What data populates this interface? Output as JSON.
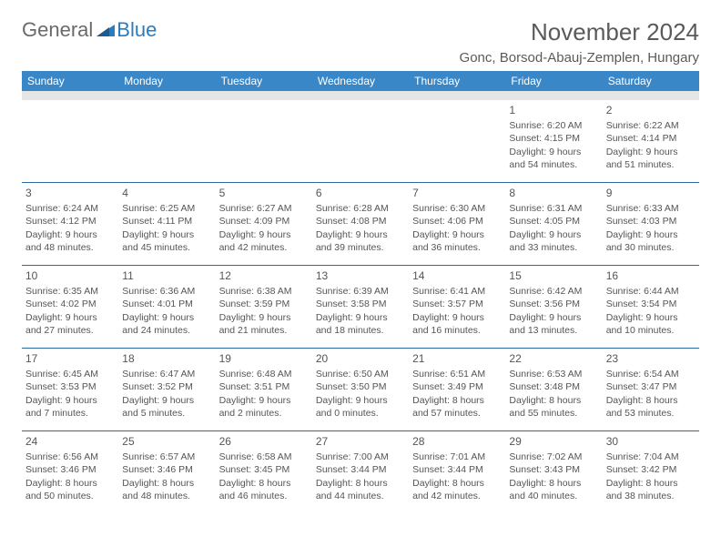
{
  "logo": {
    "part1": "General",
    "part2": "Blue"
  },
  "title": "November 2024",
  "location": "Gonc, Borsod-Abauj-Zemplen, Hungary",
  "header_color": "#3a87c8",
  "border_color": "#2b6aa3",
  "spacer_color": "#e5e5e5",
  "text_color": "#555555",
  "weekdays": [
    "Sunday",
    "Monday",
    "Tuesday",
    "Wednesday",
    "Thursday",
    "Friday",
    "Saturday"
  ],
  "weeks": [
    [
      {
        "n": "",
        "sr": "",
        "ss": "",
        "dl": ""
      },
      {
        "n": "",
        "sr": "",
        "ss": "",
        "dl": ""
      },
      {
        "n": "",
        "sr": "",
        "ss": "",
        "dl": ""
      },
      {
        "n": "",
        "sr": "",
        "ss": "",
        "dl": ""
      },
      {
        "n": "",
        "sr": "",
        "ss": "",
        "dl": ""
      },
      {
        "n": "1",
        "sr": "Sunrise: 6:20 AM",
        "ss": "Sunset: 4:15 PM",
        "dl": "Daylight: 9 hours and 54 minutes."
      },
      {
        "n": "2",
        "sr": "Sunrise: 6:22 AM",
        "ss": "Sunset: 4:14 PM",
        "dl": "Daylight: 9 hours and 51 minutes."
      }
    ],
    [
      {
        "n": "3",
        "sr": "Sunrise: 6:24 AM",
        "ss": "Sunset: 4:12 PM",
        "dl": "Daylight: 9 hours and 48 minutes."
      },
      {
        "n": "4",
        "sr": "Sunrise: 6:25 AM",
        "ss": "Sunset: 4:11 PM",
        "dl": "Daylight: 9 hours and 45 minutes."
      },
      {
        "n": "5",
        "sr": "Sunrise: 6:27 AM",
        "ss": "Sunset: 4:09 PM",
        "dl": "Daylight: 9 hours and 42 minutes."
      },
      {
        "n": "6",
        "sr": "Sunrise: 6:28 AM",
        "ss": "Sunset: 4:08 PM",
        "dl": "Daylight: 9 hours and 39 minutes."
      },
      {
        "n": "7",
        "sr": "Sunrise: 6:30 AM",
        "ss": "Sunset: 4:06 PM",
        "dl": "Daylight: 9 hours and 36 minutes."
      },
      {
        "n": "8",
        "sr": "Sunrise: 6:31 AM",
        "ss": "Sunset: 4:05 PM",
        "dl": "Daylight: 9 hours and 33 minutes."
      },
      {
        "n": "9",
        "sr": "Sunrise: 6:33 AM",
        "ss": "Sunset: 4:03 PM",
        "dl": "Daylight: 9 hours and 30 minutes."
      }
    ],
    [
      {
        "n": "10",
        "sr": "Sunrise: 6:35 AM",
        "ss": "Sunset: 4:02 PM",
        "dl": "Daylight: 9 hours and 27 minutes."
      },
      {
        "n": "11",
        "sr": "Sunrise: 6:36 AM",
        "ss": "Sunset: 4:01 PM",
        "dl": "Daylight: 9 hours and 24 minutes."
      },
      {
        "n": "12",
        "sr": "Sunrise: 6:38 AM",
        "ss": "Sunset: 3:59 PM",
        "dl": "Daylight: 9 hours and 21 minutes."
      },
      {
        "n": "13",
        "sr": "Sunrise: 6:39 AM",
        "ss": "Sunset: 3:58 PM",
        "dl": "Daylight: 9 hours and 18 minutes."
      },
      {
        "n": "14",
        "sr": "Sunrise: 6:41 AM",
        "ss": "Sunset: 3:57 PM",
        "dl": "Daylight: 9 hours and 16 minutes."
      },
      {
        "n": "15",
        "sr": "Sunrise: 6:42 AM",
        "ss": "Sunset: 3:56 PM",
        "dl": "Daylight: 9 hours and 13 minutes."
      },
      {
        "n": "16",
        "sr": "Sunrise: 6:44 AM",
        "ss": "Sunset: 3:54 PM",
        "dl": "Daylight: 9 hours and 10 minutes."
      }
    ],
    [
      {
        "n": "17",
        "sr": "Sunrise: 6:45 AM",
        "ss": "Sunset: 3:53 PM",
        "dl": "Daylight: 9 hours and 7 minutes."
      },
      {
        "n": "18",
        "sr": "Sunrise: 6:47 AM",
        "ss": "Sunset: 3:52 PM",
        "dl": "Daylight: 9 hours and 5 minutes."
      },
      {
        "n": "19",
        "sr": "Sunrise: 6:48 AM",
        "ss": "Sunset: 3:51 PM",
        "dl": "Daylight: 9 hours and 2 minutes."
      },
      {
        "n": "20",
        "sr": "Sunrise: 6:50 AM",
        "ss": "Sunset: 3:50 PM",
        "dl": "Daylight: 9 hours and 0 minutes."
      },
      {
        "n": "21",
        "sr": "Sunrise: 6:51 AM",
        "ss": "Sunset: 3:49 PM",
        "dl": "Daylight: 8 hours and 57 minutes."
      },
      {
        "n": "22",
        "sr": "Sunrise: 6:53 AM",
        "ss": "Sunset: 3:48 PM",
        "dl": "Daylight: 8 hours and 55 minutes."
      },
      {
        "n": "23",
        "sr": "Sunrise: 6:54 AM",
        "ss": "Sunset: 3:47 PM",
        "dl": "Daylight: 8 hours and 53 minutes."
      }
    ],
    [
      {
        "n": "24",
        "sr": "Sunrise: 6:56 AM",
        "ss": "Sunset: 3:46 PM",
        "dl": "Daylight: 8 hours and 50 minutes."
      },
      {
        "n": "25",
        "sr": "Sunrise: 6:57 AM",
        "ss": "Sunset: 3:46 PM",
        "dl": "Daylight: 8 hours and 48 minutes."
      },
      {
        "n": "26",
        "sr": "Sunrise: 6:58 AM",
        "ss": "Sunset: 3:45 PM",
        "dl": "Daylight: 8 hours and 46 minutes."
      },
      {
        "n": "27",
        "sr": "Sunrise: 7:00 AM",
        "ss": "Sunset: 3:44 PM",
        "dl": "Daylight: 8 hours and 44 minutes."
      },
      {
        "n": "28",
        "sr": "Sunrise: 7:01 AM",
        "ss": "Sunset: 3:44 PM",
        "dl": "Daylight: 8 hours and 42 minutes."
      },
      {
        "n": "29",
        "sr": "Sunrise: 7:02 AM",
        "ss": "Sunset: 3:43 PM",
        "dl": "Daylight: 8 hours and 40 minutes."
      },
      {
        "n": "30",
        "sr": "Sunrise: 7:04 AM",
        "ss": "Sunset: 3:42 PM",
        "dl": "Daylight: 8 hours and 38 minutes."
      }
    ]
  ]
}
